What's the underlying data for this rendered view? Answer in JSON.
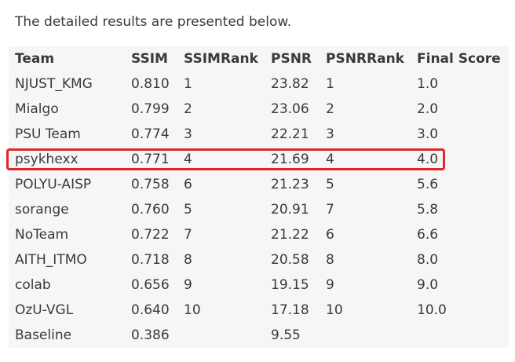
{
  "intro_text": "The detailed results are presented below.",
  "table": {
    "headers": {
      "team": "Team",
      "ssim": "SSIM",
      "ssim_rank": "SSIMRank",
      "psnr": "PSNR",
      "psnr_rank": "PSNRRank",
      "final_score": "Final Score"
    },
    "rows": [
      {
        "team": "NJUST_KMG",
        "ssim": "0.810",
        "ssim_rank": "1",
        "psnr": "23.82",
        "psnr_rank": "1",
        "final_score": "1.0"
      },
      {
        "team": "Mialgo",
        "ssim": "0.799",
        "ssim_rank": "2",
        "psnr": "23.06",
        "psnr_rank": "2",
        "final_score": "2.0"
      },
      {
        "team": "PSU Team",
        "ssim": "0.774",
        "ssim_rank": "3",
        "psnr": "22.21",
        "psnr_rank": "3",
        "final_score": "3.0"
      },
      {
        "team": "psykhexx",
        "ssim": "0.771",
        "ssim_rank": "4",
        "psnr": "21.69",
        "psnr_rank": "4",
        "final_score": "4.0"
      },
      {
        "team": "POLYU-AISP",
        "ssim": "0.758",
        "ssim_rank": "6",
        "psnr": "21.23",
        "psnr_rank": "5",
        "final_score": "5.6"
      },
      {
        "team": "sorange",
        "ssim": "0.760",
        "ssim_rank": "5",
        "psnr": "20.91",
        "psnr_rank": "7",
        "final_score": "5.8"
      },
      {
        "team": "NoTeam",
        "ssim": "0.722",
        "ssim_rank": "7",
        "psnr": "21.22",
        "psnr_rank": "6",
        "final_score": "6.6"
      },
      {
        "team": "AITH_ITMO",
        "ssim": "0.718",
        "ssim_rank": "8",
        "psnr": "20.58",
        "psnr_rank": "8",
        "final_score": "8.0"
      },
      {
        "team": "colab",
        "ssim": "0.656",
        "ssim_rank": "9",
        "psnr": "19.15",
        "psnr_rank": "9",
        "final_score": "9.0"
      },
      {
        "team": "OzU-VGL",
        "ssim": "0.640",
        "ssim_rank": "10",
        "psnr": "17.18",
        "psnr_rank": "10",
        "final_score": "10.0"
      },
      {
        "team": "Baseline",
        "ssim": "0.386",
        "ssim_rank": "",
        "psnr": "9.55",
        "psnr_rank": "",
        "final_score": ""
      }
    ]
  },
  "highlighted_team": "psykhexx",
  "colors": {
    "highlight_border": "#e0272b",
    "table_background": "#f6f6f6",
    "text": "#3a3a3a"
  }
}
